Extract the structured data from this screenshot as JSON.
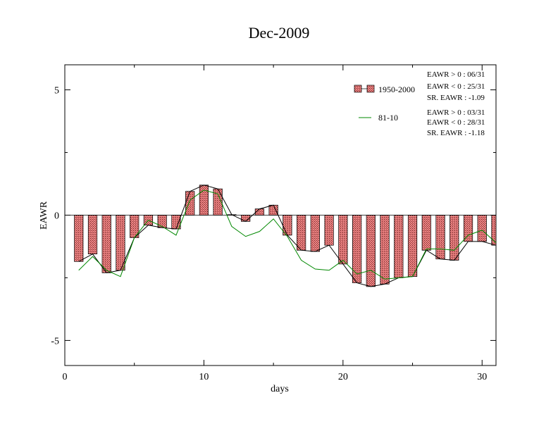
{
  "chart_data": {
    "type": "bar",
    "title": "Dec-2009",
    "xlabel": "days",
    "ylabel": "EAWR",
    "xlim": [
      0,
      31
    ],
    "ylim": [
      -6,
      6
    ],
    "xticks": [
      0,
      10,
      20,
      30
    ],
    "xtick_labels": [
      "0",
      "10",
      "20",
      "30"
    ],
    "yticks": [
      -5,
      0,
      5
    ],
    "ytick_labels": [
      "-5",
      "0",
      "5"
    ],
    "grid": false,
    "legend_position": "top-right",
    "x": [
      1,
      2,
      3,
      4,
      5,
      6,
      7,
      8,
      9,
      10,
      11,
      12,
      13,
      14,
      15,
      16,
      17,
      18,
      19,
      20,
      21,
      22,
      23,
      24,
      25,
      26,
      27,
      28,
      29,
      30,
      31
    ],
    "series": [
      {
        "name": "1950-2000",
        "type": "bar",
        "values": [
          -1.85,
          -1.55,
          -2.3,
          -2.2,
          -0.9,
          -0.4,
          -0.5,
          -0.55,
          0.95,
          1.2,
          1.05,
          0.02,
          -0.25,
          0.25,
          0.4,
          -0.8,
          -1.4,
          -1.45,
          -1.2,
          -1.95,
          -2.7,
          -2.85,
          -2.75,
          -2.5,
          -2.45,
          -1.4,
          -1.75,
          -1.8,
          -1.05,
          -1.05,
          -1.2
        ],
        "color": "#e88080"
      },
      {
        "name": "81-10",
        "type": "line",
        "values": [
          -2.2,
          -1.65,
          -2.2,
          -2.45,
          -0.9,
          -0.2,
          -0.45,
          -0.8,
          0.6,
          1.0,
          0.85,
          -0.45,
          -0.85,
          -0.65,
          -0.15,
          -0.85,
          -1.8,
          -2.15,
          -2.2,
          -1.8,
          -2.35,
          -2.2,
          -2.55,
          -2.5,
          -2.45,
          -1.35,
          -1.35,
          -1.4,
          -0.8,
          -0.6,
          -1.1
        ],
        "color": "#008800"
      },
      {
        "name": "",
        "type": "line",
        "values": [
          -1.85,
          -1.55,
          -2.3,
          -2.2,
          -0.9,
          -0.4,
          -0.5,
          -0.55,
          0.95,
          1.2,
          1.05,
          0.02,
          -0.25,
          0.25,
          0.4,
          -0.8,
          -1.4,
          -1.45,
          -1.2,
          -1.95,
          -2.7,
          -2.85,
          -2.75,
          -2.5,
          -2.45,
          -1.4,
          -1.75,
          -1.8,
          -1.05,
          -1.05,
          -1.2
        ],
        "color": "#000000"
      }
    ],
    "stats": {
      "group1": [
        "EAWR > 0 : 06/31",
        "EAWR < 0 : 25/31",
        "SR. EAWR : -1.09"
      ],
      "group2": [
        "EAWR > 0 : 03/31",
        "EAWR < 0 : 28/31",
        "SR. EAWR : -1.18"
      ]
    },
    "legend": {
      "bar_label": "1950-2000",
      "line_label": "81-10"
    }
  }
}
